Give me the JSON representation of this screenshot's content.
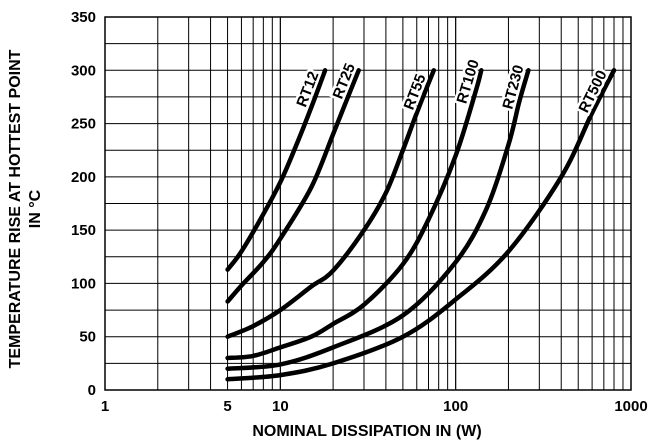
{
  "chart_data": {
    "type": "line",
    "xlabel": "NOMINAL DISSIPATION IN (W)",
    "ylabel_line1": "TEMPERATURE RISE AT HOTTEST POINT",
    "ylabel_line2": "IN °C",
    "x_scale": "log",
    "xlim": [
      1,
      1000
    ],
    "ylim": [
      0,
      350
    ],
    "grid": true,
    "x_ticks": [
      {
        "value": 1,
        "label": "1"
      },
      {
        "value": 5,
        "label": "5"
      },
      {
        "value": 10,
        "label": "10"
      },
      {
        "value": 100,
        "label": "100"
      },
      {
        "value": 1000,
        "label": "1000"
      }
    ],
    "y_ticks": [
      {
        "value": 0,
        "label": "0"
      },
      {
        "value": 50,
        "label": "50"
      },
      {
        "value": 100,
        "label": "100"
      },
      {
        "value": 150,
        "label": "150"
      },
      {
        "value": 200,
        "label": "200"
      },
      {
        "value": 250,
        "label": "250"
      },
      {
        "value": 300,
        "label": "300"
      },
      {
        "value": 350,
        "label": "350"
      }
    ],
    "series": [
      {
        "name": "RT12",
        "points": [
          [
            5,
            113
          ],
          [
            6,
            130
          ],
          [
            8,
            165
          ],
          [
            10,
            195
          ],
          [
            12,
            225
          ],
          [
            15,
            265
          ],
          [
            18,
            300
          ]
        ]
      },
      {
        "name": "RT25",
        "points": [
          [
            5,
            83
          ],
          [
            6,
            98
          ],
          [
            8,
            120
          ],
          [
            10,
            142
          ],
          [
            15,
            190
          ],
          [
            20,
            240
          ],
          [
            25,
            280
          ],
          [
            28,
            300
          ]
        ]
      },
      {
        "name": "RT55",
        "points": [
          [
            5,
            50
          ],
          [
            7,
            60
          ],
          [
            10,
            75
          ],
          [
            15,
            97
          ],
          [
            20,
            112
          ],
          [
            30,
            150
          ],
          [
            40,
            185
          ],
          [
            50,
            225
          ],
          [
            60,
            260
          ],
          [
            75,
            300
          ]
        ]
      },
      {
        "name": "RT100",
        "points": [
          [
            5,
            30
          ],
          [
            7,
            32
          ],
          [
            10,
            40
          ],
          [
            15,
            50
          ],
          [
            20,
            62
          ],
          [
            30,
            80
          ],
          [
            50,
            118
          ],
          [
            70,
            160
          ],
          [
            100,
            220
          ],
          [
            130,
            280
          ],
          [
            140,
            300
          ]
        ]
      },
      {
        "name": "RT230",
        "points": [
          [
            5,
            20
          ],
          [
            10,
            24
          ],
          [
            20,
            40
          ],
          [
            50,
            70
          ],
          [
            100,
            120
          ],
          [
            150,
            170
          ],
          [
            200,
            230
          ],
          [
            230,
            270
          ],
          [
            260,
            300
          ]
        ]
      },
      {
        "name": "RT500",
        "points": [
          [
            5,
            10
          ],
          [
            10,
            14
          ],
          [
            20,
            25
          ],
          [
            50,
            50
          ],
          [
            100,
            85
          ],
          [
            200,
            130
          ],
          [
            400,
            200
          ],
          [
            600,
            260
          ],
          [
            800,
            300
          ]
        ]
      }
    ]
  }
}
